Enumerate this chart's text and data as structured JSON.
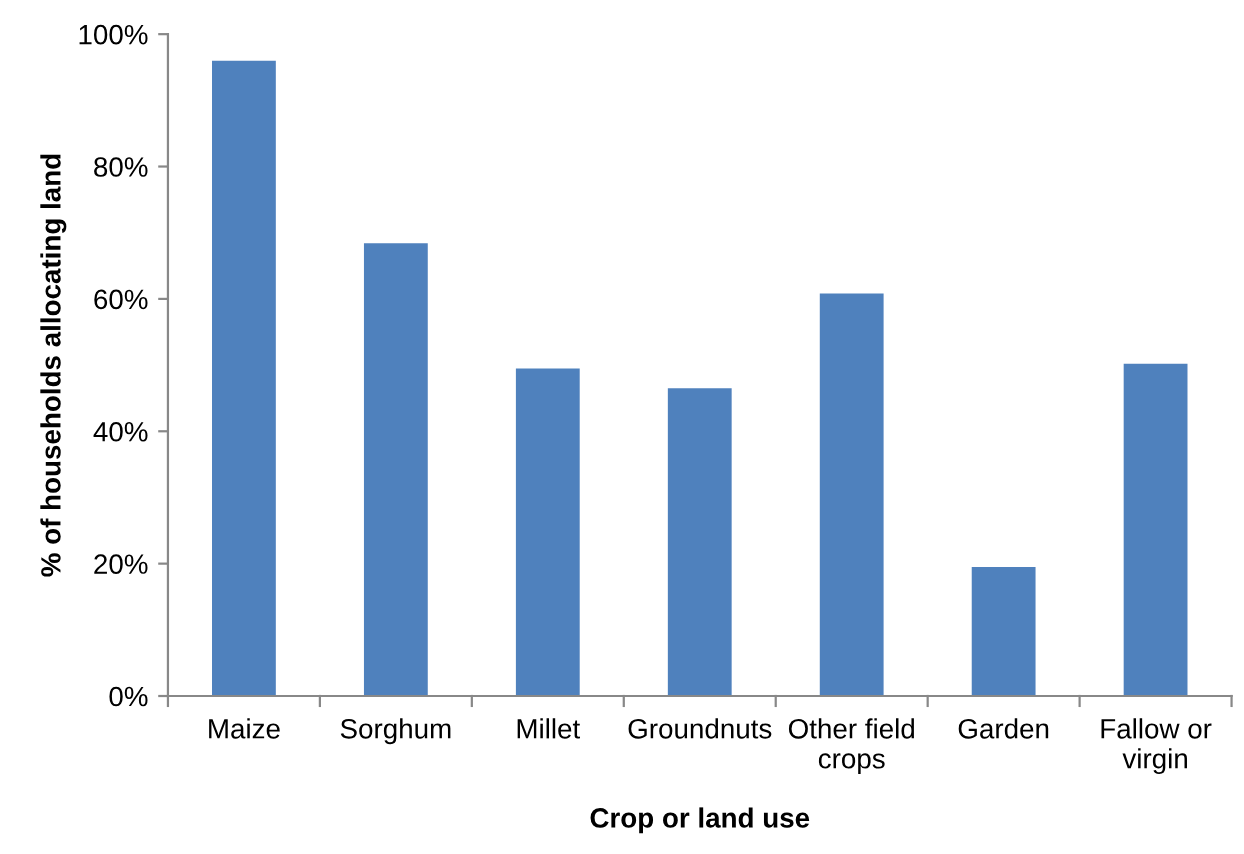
{
  "chart_data": {
    "type": "bar",
    "xlabel": "Crop or land use",
    "ylabel": "% of households allocating land",
    "categories": [
      "Maize",
      "Sorghum",
      "Millet",
      "Groundnuts",
      "Other field\ncrops",
      "Garden",
      "Fallow or\nvirgin"
    ],
    "values": [
      96.0,
      68.4,
      49.5,
      46.5,
      60.8,
      19.5,
      50.2
    ],
    "color": "#4f81bd",
    "ylim": [
      0,
      100
    ],
    "yticks": [
      {
        "value": 0,
        "label": "0%"
      },
      {
        "value": 20,
        "label": "20%"
      },
      {
        "value": 40,
        "label": "40%"
      },
      {
        "value": 60,
        "label": "60%"
      },
      {
        "value": 80,
        "label": "80%"
      },
      {
        "value": 100,
        "label": "100%"
      }
    ],
    "grid": false,
    "legend": false
  }
}
